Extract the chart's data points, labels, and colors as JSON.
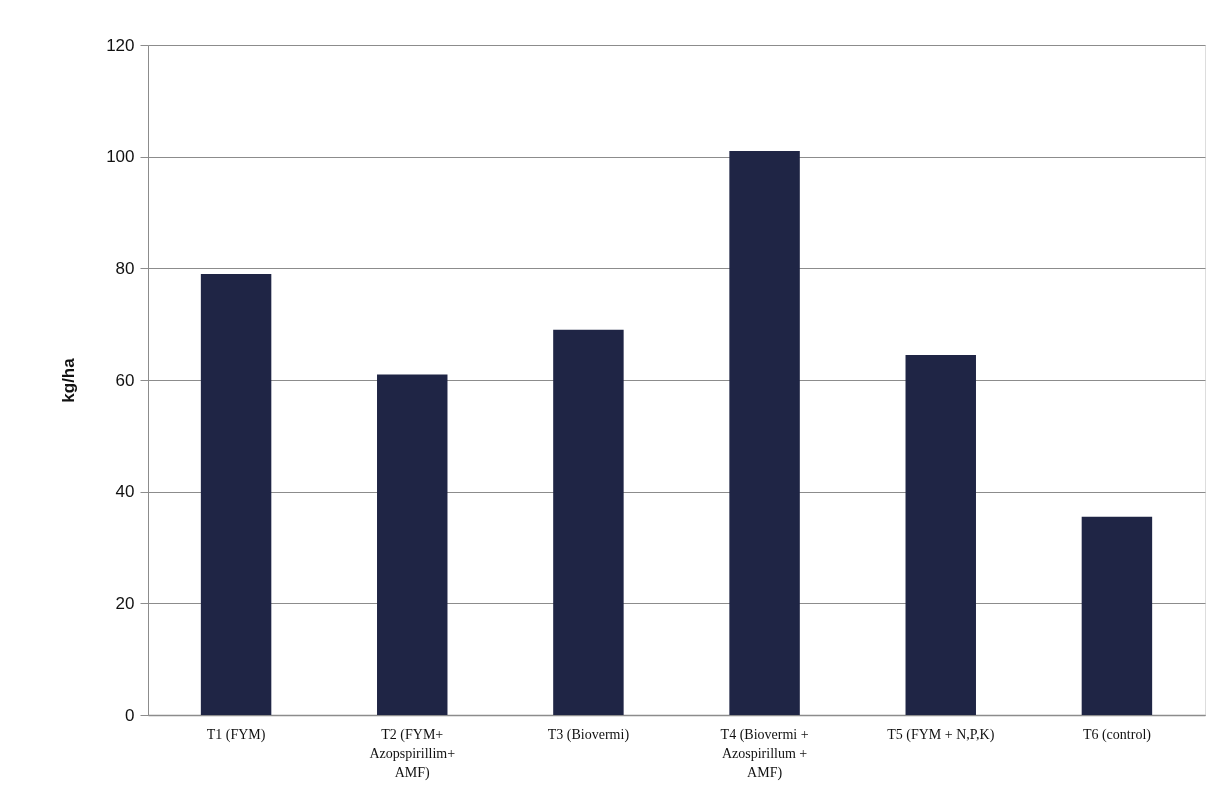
{
  "chart_data": {
    "type": "bar",
    "ylabel": "kg/ha",
    "categories": [
      "T1 (FYM)",
      "T2 (FYM+ Azopspirillim+ AMF)",
      "T3 (Biovermi)",
      "T4 (Biovermi + Azospirillum + AMF)",
      "T5 (FYM + N,P,K)",
      "T6 (control)"
    ],
    "values": [
      79,
      61,
      69,
      101,
      64.5,
      35.5
    ],
    "color": "#1f2545",
    "ylim": [
      0,
      120
    ],
    "yticks": [
      0,
      20,
      40,
      60,
      80,
      100,
      120
    ],
    "grid": "y"
  }
}
